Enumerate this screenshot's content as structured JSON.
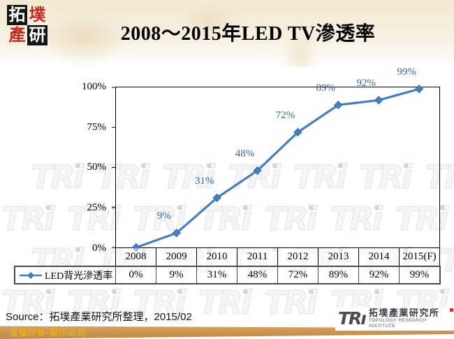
{
  "header": {
    "title": "2008～2015年LED TV滲透率",
    "logo_chars": [
      "拓",
      "墣",
      "產",
      "研"
    ]
  },
  "chart_data": {
    "type": "line",
    "title": "2008～2015年LED TV滲透率",
    "categories": [
      "2008",
      "2009",
      "2010",
      "2011",
      "2012",
      "2013",
      "2014",
      "2015(F)"
    ],
    "series": [
      {
        "name": "LED背光滲透率",
        "values": [
          0,
          9,
          31,
          48,
          72,
          89,
          92,
          99
        ],
        "values_display": [
          "0%",
          "9%",
          "31%",
          "48%",
          "72%",
          "89%",
          "92%",
          "99%"
        ]
      }
    ],
    "ylim": [
      0,
      100
    ],
    "yticks": [
      "0%",
      "25%",
      "50%",
      "75%",
      "100%"
    ],
    "grid": false,
    "legend_position": "bottom-table",
    "line_color": "#4A7EBB",
    "label_color": "#3F6694"
  },
  "table": {
    "legend_label": "LED背光滲透率"
  },
  "footer": {
    "source": "Source：拓墣產業研究所整理，2015/02",
    "copyright": "版權所有▪翻印必究",
    "tri_logo": {
      "text": "TRı",
      "name_zh": "拓墣產業研究所",
      "name_en": "TOPOLOGY RESEARCH INSTITUTE"
    }
  },
  "watermark": {
    "text": "TRi"
  }
}
